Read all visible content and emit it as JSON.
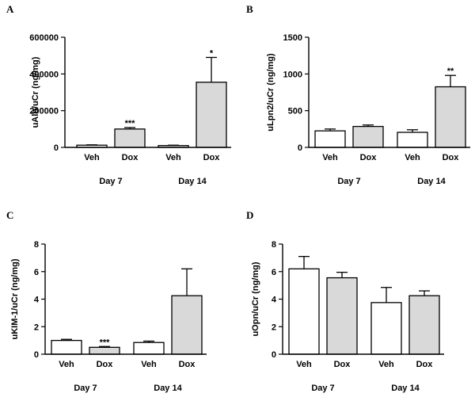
{
  "chart_data": [
    {
      "type": "bar",
      "panel": "A",
      "ylabel": "uAlb/uCr (ng/mg)",
      "ylim": [
        0,
        600000
      ],
      "yticks": [
        0,
        200000,
        400000,
        600000
      ],
      "ytick_labels": [
        "0",
        "200000",
        "400000",
        "600000"
      ],
      "categories": [
        "Veh",
        "Dox",
        "Veh",
        "Dox"
      ],
      "groups": [
        "Day 7",
        "Day 14"
      ],
      "values": [
        12000,
        100000,
        10000,
        355000
      ],
      "errors": [
        2000,
        8000,
        2000,
        135000
      ],
      "fills": [
        "#ffffff",
        "#d9d9d9",
        "#ffffff",
        "#d9d9d9"
      ],
      "significance": [
        "",
        "***",
        "",
        "*"
      ]
    },
    {
      "type": "bar",
      "panel": "B",
      "ylabel": "uLpn2/uCr (ng/mg)",
      "ylim": [
        0,
        1500
      ],
      "yticks": [
        0,
        500,
        1000,
        1500
      ],
      "ytick_labels": [
        "0",
        "500",
        "1000",
        "1500"
      ],
      "categories": [
        "Veh",
        "Dox",
        "Veh",
        "Dox"
      ],
      "groups": [
        "Day 7",
        "Day 14"
      ],
      "values": [
        225,
        285,
        205,
        825
      ],
      "errors": [
        25,
        20,
        35,
        155
      ],
      "fills": [
        "#ffffff",
        "#d9d9d9",
        "#ffffff",
        "#d9d9d9"
      ],
      "significance": [
        "",
        "",
        "",
        "**"
      ]
    },
    {
      "type": "bar",
      "panel": "C",
      "ylabel": "uKIM-1/uCr (ng/mg)",
      "ylim": [
        0,
        8
      ],
      "yticks": [
        0,
        2,
        4,
        6,
        8
      ],
      "ytick_labels": [
        "0",
        "2",
        "4",
        "6",
        "8"
      ],
      "categories": [
        "Veh",
        "Dox",
        "Veh",
        "Dox"
      ],
      "groups": [
        "Day 7",
        "Day 14"
      ],
      "values": [
        1.0,
        0.5,
        0.85,
        4.25
      ],
      "errors": [
        0.08,
        0.06,
        0.1,
        1.95
      ],
      "fills": [
        "#ffffff",
        "#d9d9d9",
        "#ffffff",
        "#d9d9d9"
      ],
      "significance": [
        "",
        "***",
        "",
        ""
      ]
    },
    {
      "type": "bar",
      "panel": "D",
      "ylabel": "uOpn/uCr (ng/mg)",
      "ylim": [
        0,
        8
      ],
      "yticks": [
        0,
        2,
        4,
        6,
        8
      ],
      "ytick_labels": [
        "0",
        "2",
        "4",
        "6",
        "8"
      ],
      "categories": [
        "Veh",
        "Dox",
        "Veh",
        "Dox"
      ],
      "groups": [
        "Day 7",
        "Day 14"
      ],
      "values": [
        6.2,
        5.55,
        3.75,
        4.25
      ],
      "errors": [
        0.9,
        0.4,
        1.1,
        0.35
      ],
      "fills": [
        "#ffffff",
        "#d9d9d9",
        "#ffffff",
        "#d9d9d9"
      ],
      "significance": [
        "",
        "",
        "",
        ""
      ]
    }
  ]
}
